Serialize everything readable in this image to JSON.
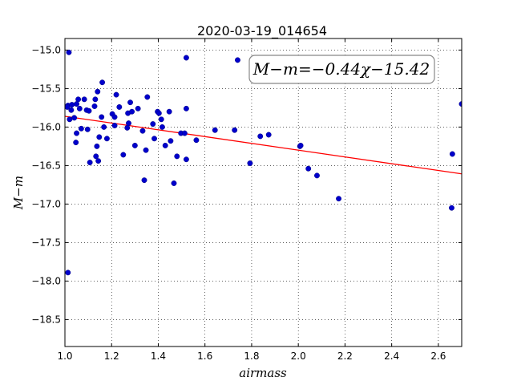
{
  "chart_data": {
    "type": "scatter",
    "title": "2020-03-19_014654",
    "xlabel": "airmass",
    "ylabel": "M−m",
    "xlim": [
      1.0,
      2.7
    ],
    "ylim": [
      -18.85,
      -14.85
    ],
    "y_inverted": true,
    "grid": true,
    "grid_style": "dotted",
    "x_ticks": [
      1.0,
      1.2,
      1.4,
      1.6,
      1.8,
      2.0,
      2.2,
      2.4,
      2.6
    ],
    "x_tick_labels": [
      "1.0",
      "1.2",
      "1.4",
      "1.6",
      "1.8",
      "2.0",
      "2.2",
      "2.4",
      "2.6"
    ],
    "y_ticks": [
      -15.0,
      -15.5,
      -16.0,
      -16.5,
      -17.0,
      -17.5,
      -18.0,
      -18.5
    ],
    "y_tick_labels": [
      "−15.0",
      "−15.5",
      "−16.0",
      "−16.5",
      "−17.0",
      "−17.5",
      "−18.0",
      "−18.5"
    ],
    "annotation": "M−m=−0.44χ−15.42",
    "annotation_placement": "top-right",
    "colors": {
      "points": "#0000cc",
      "fit_line": "#ff0000"
    },
    "fit": {
      "slope": -0.44,
      "intercept": -15.42
    },
    "series": [
      {
        "x": [
          1.013,
          1.017,
          1.013,
          1.02,
          1.027,
          1.03,
          1.04,
          1.047,
          1.05,
          1.05,
          1.057,
          1.063,
          1.07,
          1.083,
          1.093,
          1.097,
          1.103,
          1.107,
          1.127,
          1.13,
          1.133,
          1.137,
          1.14,
          1.143,
          1.147,
          1.157,
          1.16,
          1.167,
          1.18,
          1.203,
          1.213,
          1.213,
          1.22,
          1.233,
          1.25,
          1.267,
          1.27,
          1.273,
          1.28,
          1.287,
          1.3,
          1.313,
          1.333,
          1.34,
          1.347,
          1.353,
          1.377,
          1.383,
          1.397,
          1.403,
          1.413,
          1.417,
          1.43,
          1.447,
          1.453,
          1.467,
          1.48,
          1.497,
          1.513,
          1.52,
          1.52,
          1.52,
          1.563,
          1.643,
          1.727,
          1.74,
          1.793,
          1.837,
          1.873,
          2.007,
          2.01,
          2.043,
          2.08,
          2.173,
          2.657,
          2.66,
          2.7,
          1.01
        ],
        "y": [
          -15.72,
          -15.03,
          -17.89,
          -15.9,
          -15.78,
          -15.71,
          -15.88,
          -16.2,
          -16.08,
          -15.7,
          -15.64,
          -15.76,
          -16.02,
          -15.64,
          -15.78,
          -16.03,
          -15.79,
          -16.46,
          -15.73,
          -15.64,
          -16.38,
          -16.25,
          -15.54,
          -16.44,
          -16.13,
          -15.87,
          -15.42,
          -16.0,
          -16.15,
          -15.83,
          -15.87,
          -15.98,
          -15.58,
          -15.74,
          -16.36,
          -16.01,
          -15.82,
          -15.95,
          -15.68,
          -15.8,
          -16.24,
          -15.76,
          -16.05,
          -16.69,
          -16.3,
          -15.61,
          -15.96,
          -16.15,
          -15.8,
          -15.82,
          -15.9,
          -16.0,
          -16.24,
          -15.8,
          -16.18,
          -16.73,
          -16.38,
          -16.08,
          -16.08,
          -15.1,
          -15.76,
          -16.42,
          -16.17,
          -16.04,
          -16.04,
          -15.13,
          -16.47,
          -16.12,
          -16.1,
          -16.25,
          -16.24,
          -16.54,
          -16.63,
          -16.93,
          -17.05,
          -16.35,
          -15.7,
          -15.74
        ]
      }
    ]
  }
}
